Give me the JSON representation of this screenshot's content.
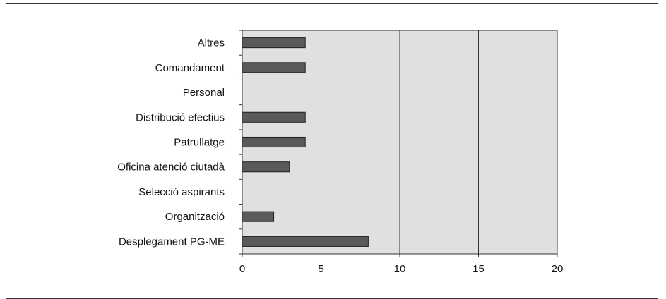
{
  "chart_data": {
    "type": "bar",
    "orientation": "horizontal",
    "categories": [
      "Altres",
      "Comandament",
      "Personal",
      "Distribució efectius",
      "Patrullatge",
      "Oficina atenció ciutadà",
      "Selecció aspirants",
      "Organització",
      "Desplegament PG-ME"
    ],
    "values": [
      4,
      4,
      0,
      4,
      4,
      3,
      0,
      2,
      8
    ],
    "xlim": [
      0,
      20
    ],
    "xticks": [
      0,
      5,
      10,
      15,
      20
    ],
    "grid": true,
    "colors": {
      "bar": "#5a5a5a",
      "plot_background": "#e0e0e0",
      "gridline": "#333333"
    }
  }
}
